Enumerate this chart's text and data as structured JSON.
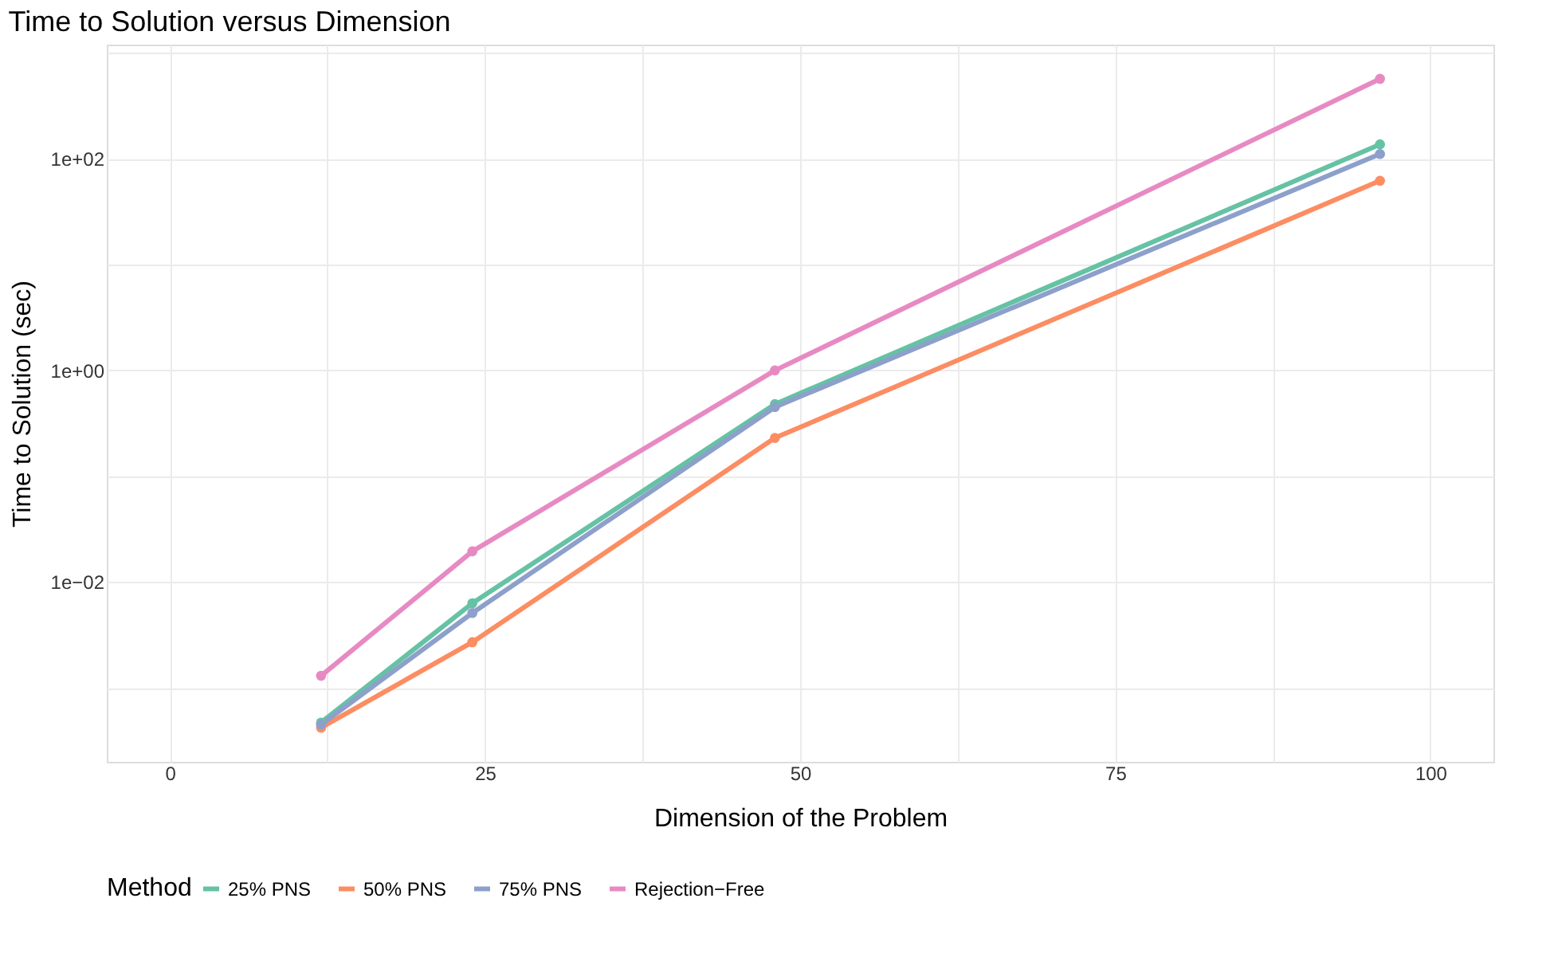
{
  "chart_data": {
    "type": "line",
    "title": "Time to Solution versus Dimension",
    "xlabel": "Dimension of the Problem",
    "ylabel": "Time to Solution (sec)",
    "legend_title": "Method",
    "x": [
      12,
      24,
      48,
      96
    ],
    "series": [
      {
        "name": "25% PNS",
        "color": "#66c2a5",
        "values": [
          0.00047,
          0.0063,
          0.48,
          137
        ]
      },
      {
        "name": "50% PNS",
        "color": "#fc8d62",
        "values": [
          0.00042,
          0.0027,
          0.23,
          62
        ]
      },
      {
        "name": "75% PNS",
        "color": "#8da0cb",
        "values": [
          0.00045,
          0.0051,
          0.45,
          111
        ]
      },
      {
        "name": "Rejection−Free",
        "color": "#e78ac3",
        "values": [
          0.0013,
          0.0195,
          1.0,
          570
        ]
      }
    ],
    "log": "y",
    "marker": "circle",
    "line_style": "solid",
    "grid": true,
    "legend": "bottom",
    "xlim": [
      -5,
      105
    ],
    "xticks": [
      0,
      {
        "value": 12.5,
        "label": null
      },
      25,
      {
        "value": 37.5,
        "label": null
      },
      50,
      {
        "value": 62.5,
        "label": null
      },
      75,
      {
        "value": 87.5,
        "label": null
      },
      100
    ],
    "ylim": [
      0.0002,
      1200
    ],
    "yticks": [
      {
        "value": 0.001,
        "label": null
      },
      {
        "value": 0.01,
        "label": "1e−02"
      },
      {
        "value": 0.1,
        "label": null
      },
      {
        "value": 1,
        "label": "1e+00"
      },
      {
        "value": 10,
        "label": null
      },
      {
        "value": 100,
        "label": "1e+02"
      },
      {
        "value": 1000,
        "label": null
      }
    ]
  }
}
